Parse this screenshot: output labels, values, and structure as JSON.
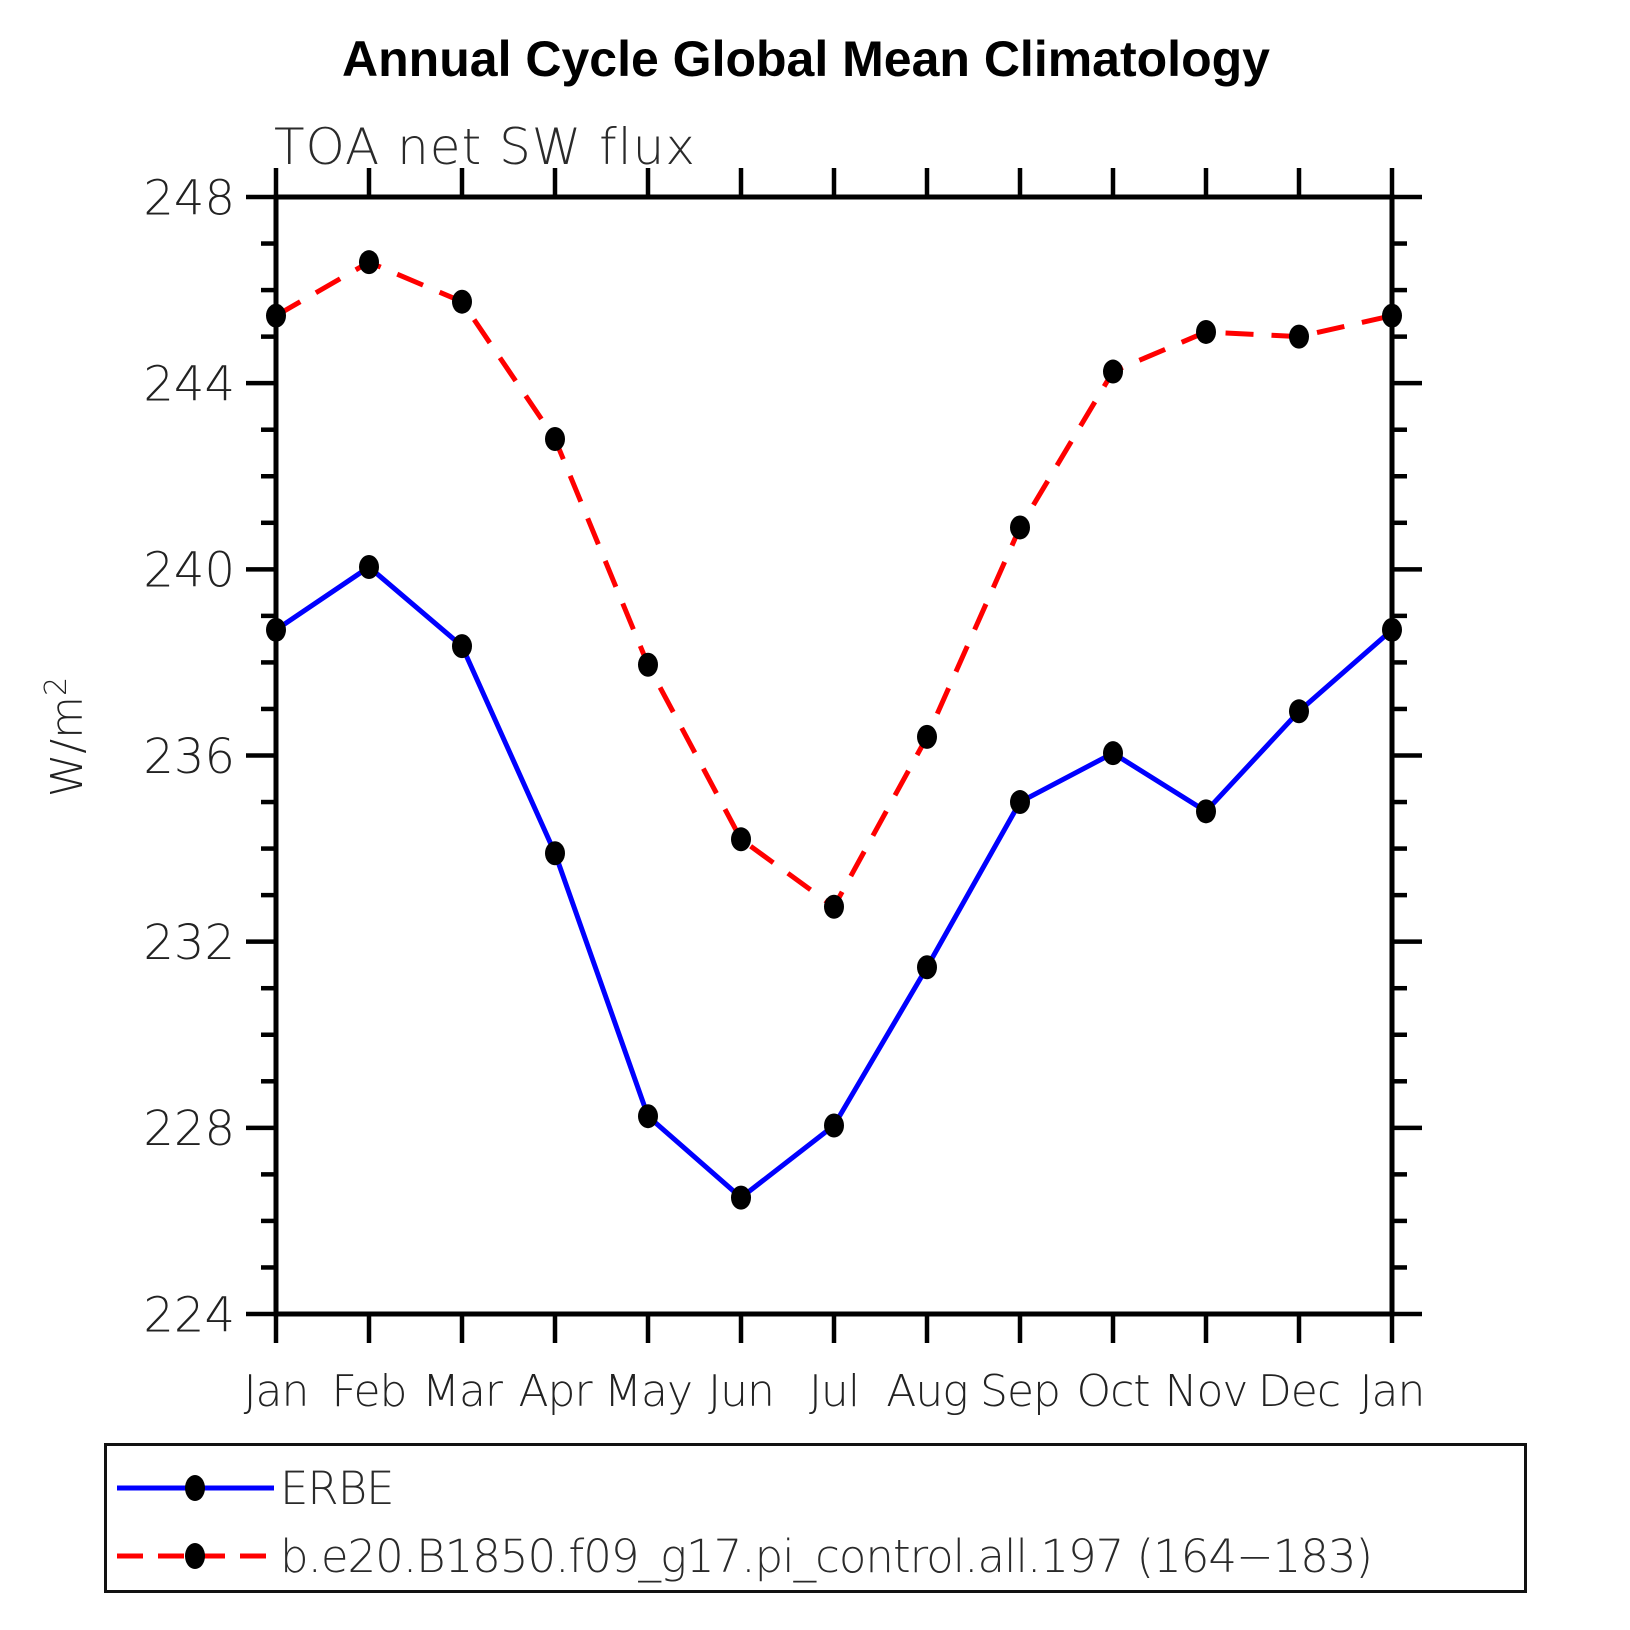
{
  "title": "Annual Cycle Global Mean Climatology",
  "subtitle": "TOA net SW flux",
  "y_axis_label": {
    "base": "W/m",
    "exponent": "2"
  },
  "colors": {
    "erbe_line": "#0000ff",
    "model_line": "#ff0000",
    "marker": "#000000",
    "axis": "#000000",
    "text": "#222222"
  },
  "chart_data": {
    "type": "line",
    "title": "Annual Cycle Global Mean Climatology",
    "subtitle": "TOA net SW flux",
    "ylabel": "W/m²",
    "xlabel": "",
    "categories": [
      "Jan",
      "Feb",
      "Mar",
      "Apr",
      "May",
      "Jun",
      "Jul",
      "Aug",
      "Sep",
      "Oct",
      "Nov",
      "Dec",
      "Jan"
    ],
    "series": [
      {
        "name": "ERBE",
        "color": "#0000ff",
        "style": "solid",
        "marker": "filled-circle",
        "values": [
          238.7,
          240.05,
          238.35,
          233.9,
          228.25,
          226.5,
          228.05,
          231.45,
          235.0,
          236.05,
          234.8,
          236.95,
          238.7
        ]
      },
      {
        "name": "b.e20.B1850.f09_g17.pi_control.all.197 (164−183)",
        "color": "#ff0000",
        "style": "dashed",
        "marker": "filled-circle",
        "values": [
          245.45,
          246.6,
          245.75,
          242.8,
          237.95,
          234.2,
          232.75,
          236.4,
          240.9,
          244.25,
          245.1,
          245.0,
          245.45
        ]
      }
    ],
    "ylim": [
      224,
      248
    ],
    "ytick_major_step": 4,
    "ytick_minor_step": 1,
    "ytick_labels": [
      "224",
      "228",
      "232",
      "236",
      "240",
      "244",
      "248"
    ],
    "grid": false,
    "legend_position": "bottom",
    "frame": "box-with-outward-ticks"
  }
}
